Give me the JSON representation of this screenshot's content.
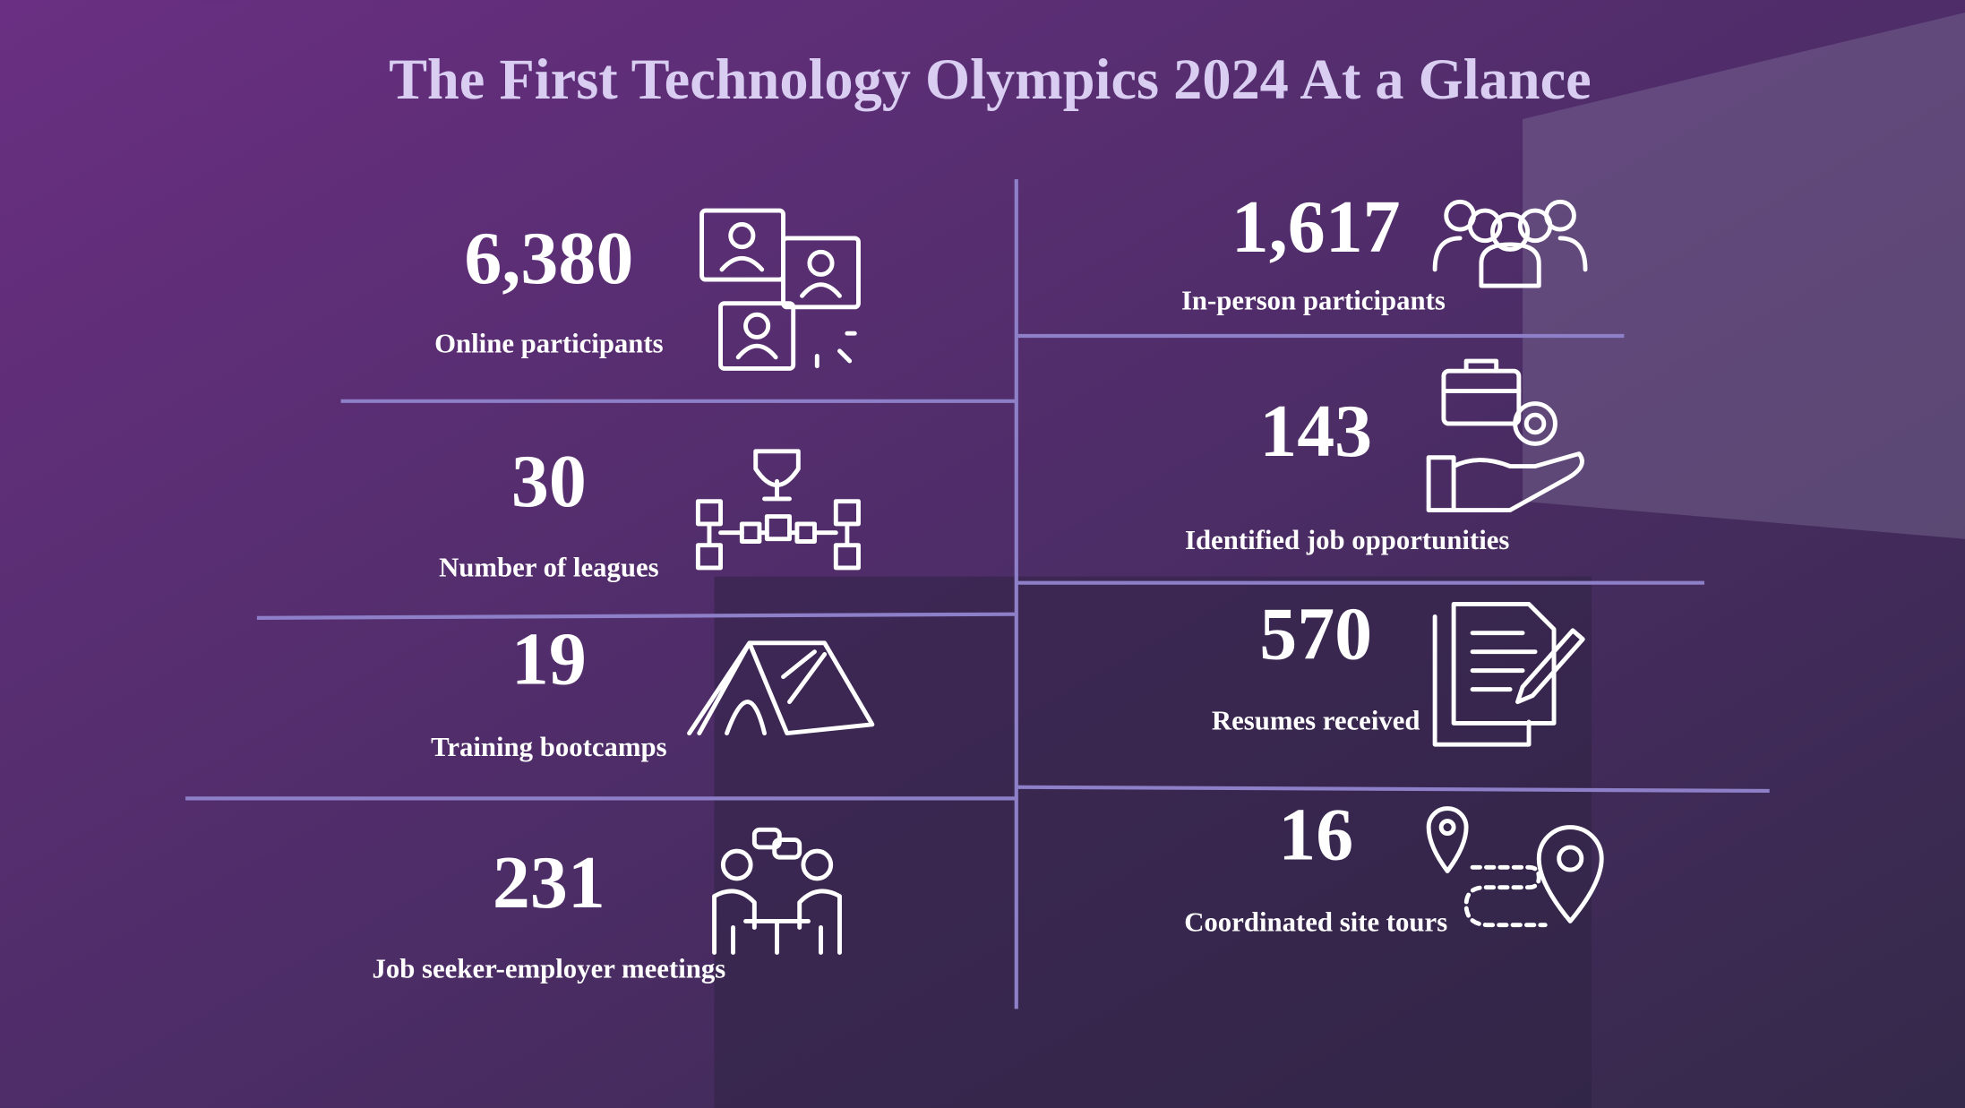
{
  "title": "The First Technology Olympics 2024 At a Glance",
  "left": [
    {
      "value": "6,380",
      "label": "Online participants"
    },
    {
      "value": "30",
      "label": "Number of leagues"
    },
    {
      "value": "19",
      "label": "Training bootcamps"
    },
    {
      "value": "231",
      "label": "Job seeker-employer meetings"
    }
  ],
  "right": [
    {
      "value": "1,617",
      "label": "In-person participants"
    },
    {
      "value": "143",
      "label": "Identified job opportunities"
    },
    {
      "value": "570",
      "label": "Resumes received"
    },
    {
      "value": "16",
      "label": "Coordinated site tours"
    }
  ]
}
